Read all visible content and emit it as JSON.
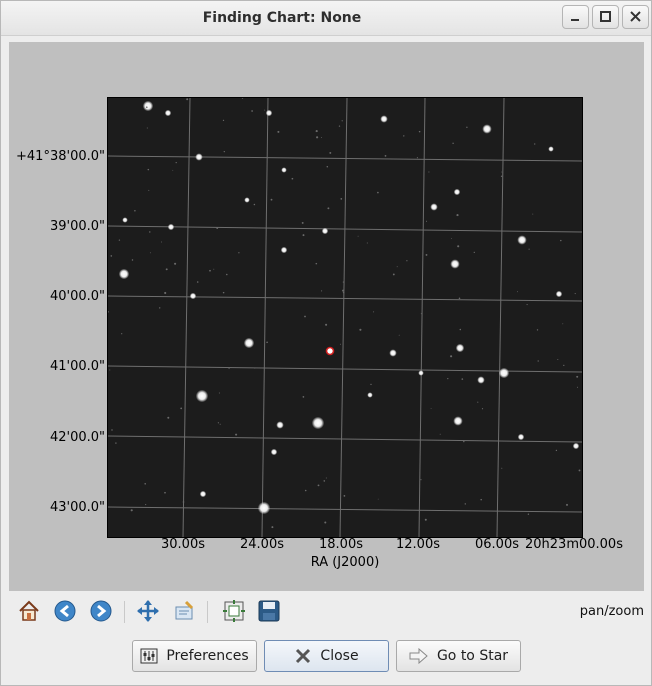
{
  "window": {
    "title": "Finding Chart: None"
  },
  "plot": {
    "y_ticks": [
      "+41°38'00.0\"",
      "39'00.0\"",
      "40'00.0\"",
      "41'00.0\"",
      "42'00.0\"",
      "43'00.0\""
    ],
    "x_ticks": [
      "30.00s",
      "24.00s",
      "18.00s",
      "12.00s",
      "06.00s",
      "20h23m00.00s"
    ],
    "x_label": "RA (J2000)",
    "highlight_color": "#d02020"
  },
  "toolbar": {
    "icons": [
      "home-icon",
      "back-arrow-icon",
      "forward-arrow-icon",
      "pan-icon",
      "zoom-rect-icon",
      "configure-subplots-icon",
      "save-icon"
    ],
    "mode": "pan/zoom"
  },
  "buttons": {
    "preferences": "Preferences",
    "close": "Close",
    "go_to_star": "Go to Star"
  }
}
